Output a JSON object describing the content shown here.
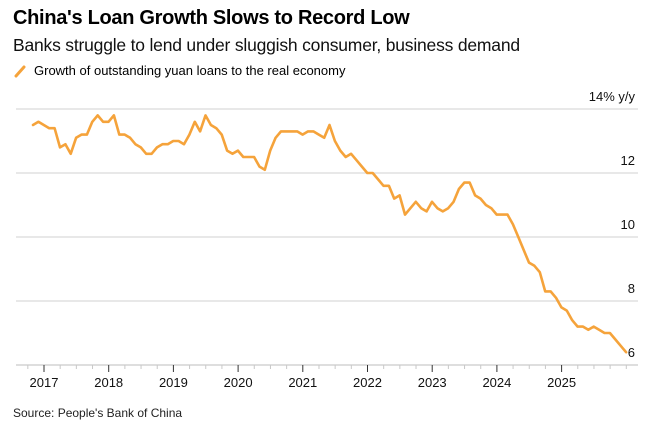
{
  "header": {
    "title": "China's Loan Growth Slows to Record Low",
    "subtitle": "Banks struggle to lend under sluggish consumer, business demand"
  },
  "legend": {
    "items": [
      {
        "label": "Growth of outstanding yuan loans to the real economy",
        "color": "#F5A33B",
        "icon": "line-swatch-icon"
      }
    ]
  },
  "footer": {
    "source": "Source: People's Bank of China"
  },
  "chart_data": {
    "type": "line",
    "title": "China's Loan Growth Slows to Record Low",
    "subtitle": "Banks struggle to lend under sluggish consumer, business demand",
    "xlabel": "",
    "ylabel": "% y/y",
    "ylim": [
      6,
      14
    ],
    "xlim": [
      2016.75,
      2026.2
    ],
    "y_ticks": [
      6,
      8,
      10,
      12,
      14
    ],
    "y_tick_labels": [
      "6",
      "8",
      "10",
      "12",
      "14% y/y"
    ],
    "x_ticks": [
      2017,
      2018,
      2019,
      2020,
      2021,
      2022,
      2023,
      2024,
      2025
    ],
    "x_tick_labels": [
      "2017",
      "2018",
      "2019",
      "2020",
      "2021",
      "2022",
      "2023",
      "2024",
      "2025"
    ],
    "grid": true,
    "legend_position": "top-left",
    "color": "#F5A33B",
    "series": [
      {
        "name": "Growth of outstanding yuan loans to the real economy",
        "x_start": 2016.83,
        "x_step_months": 1,
        "values": [
          13.5,
          13.6,
          13.5,
          13.4,
          13.4,
          12.8,
          12.9,
          12.6,
          13.1,
          13.2,
          13.2,
          13.6,
          13.8,
          13.6,
          13.6,
          13.8,
          13.2,
          13.2,
          13.1,
          12.9,
          12.8,
          12.6,
          12.6,
          12.8,
          12.9,
          12.9,
          13.0,
          13.0,
          12.9,
          13.2,
          13.6,
          13.3,
          13.8,
          13.5,
          13.4,
          13.2,
          12.7,
          12.6,
          12.7,
          12.5,
          12.5,
          12.5,
          12.2,
          12.1,
          12.7,
          13.1,
          13.3,
          13.3,
          13.3,
          13.3,
          13.2,
          13.3,
          13.3,
          13.2,
          13.1,
          13.5,
          13.0,
          12.7,
          12.5,
          12.6,
          12.4,
          12.2,
          12.0,
          12.0,
          11.8,
          11.6,
          11.6,
          11.2,
          11.3,
          10.7,
          10.9,
          11.1,
          10.9,
          10.8,
          11.1,
          10.9,
          10.8,
          10.9,
          11.1,
          11.5,
          11.7,
          11.7,
          11.3,
          11.2,
          11.0,
          10.9,
          10.7,
          10.7,
          10.7,
          10.4,
          10.0,
          9.6,
          9.2,
          9.1,
          8.9,
          8.3,
          8.3,
          8.1,
          7.8,
          7.7,
          7.4,
          7.2,
          7.2,
          7.1,
          7.2,
          7.1,
          7.0,
          7.0,
          6.8,
          6.6,
          6.4
        ]
      }
    ]
  }
}
